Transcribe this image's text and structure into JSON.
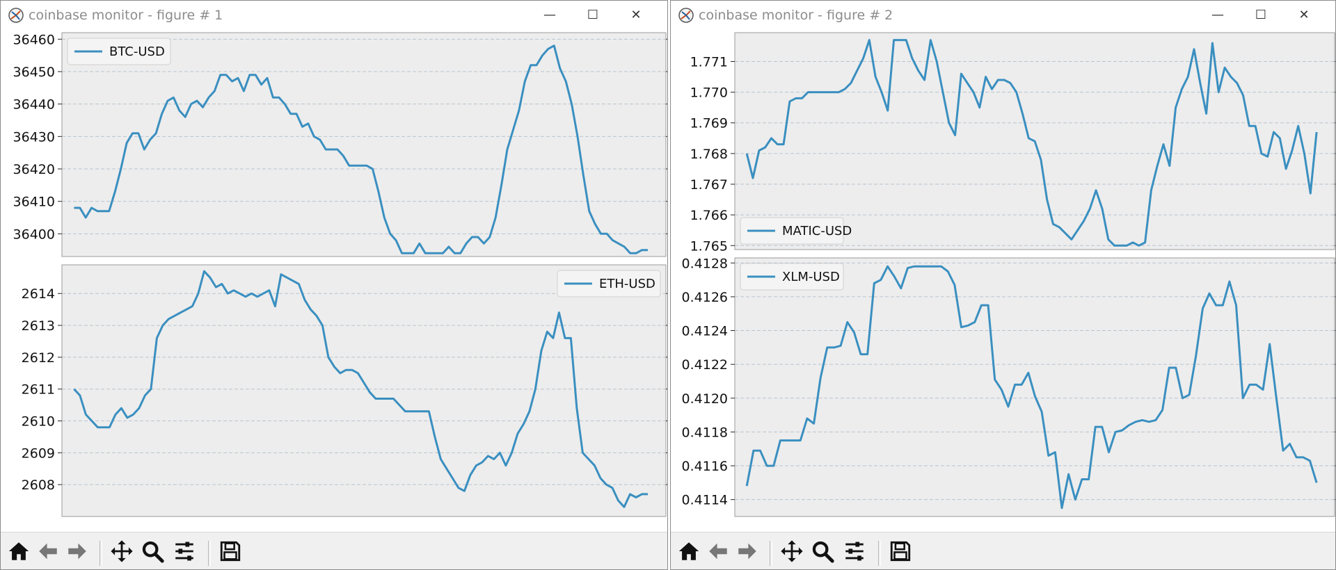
{
  "windows": [
    {
      "title": "coinbase monitor - figure # 1",
      "toolbar": [
        "home-icon",
        "back-icon",
        "forward-icon",
        "pan-icon",
        "zoom-icon",
        "configure-subplots-icon",
        "save-icon"
      ]
    },
    {
      "title": "coinbase monitor - figure # 2",
      "toolbar": [
        "home-icon",
        "back-icon",
        "forward-icon",
        "pan-icon",
        "zoom-icon",
        "configure-subplots-icon",
        "save-icon"
      ]
    }
  ],
  "colors": {
    "line": "#3a8fc0",
    "plot_bg": "#ededed",
    "grid": "#b8c4d0"
  },
  "chart_data": [
    {
      "type": "line",
      "series": [
        {
          "name": "BTC-USD",
          "values": [
            36408,
            36408,
            36405,
            36408,
            36407,
            36407,
            36407,
            36413,
            36420,
            36428,
            36431,
            36431,
            36426,
            36429,
            36431,
            36437,
            36441,
            36442,
            36438,
            36436,
            36440,
            36441,
            36439,
            36442,
            36444,
            36449,
            36449,
            36447,
            36448,
            36444,
            36449,
            36449,
            36446,
            36448,
            36442,
            36442,
            36440,
            36437,
            36437,
            36433,
            36434,
            36430,
            36429,
            36426,
            36426,
            36426,
            36424,
            36421,
            36421,
            36421,
            36421,
            36420,
            36413,
            36405,
            36400,
            36398,
            36394,
            36394,
            36394,
            36397,
            36394,
            36394,
            36394,
            36394,
            36396,
            36394,
            36394,
            36397,
            36399,
            36399,
            36397,
            36399,
            36405,
            36415,
            36426,
            36432,
            36438,
            36447,
            36452,
            36452,
            36455,
            36457,
            36458,
            36451,
            36447,
            36440,
            36430,
            36418,
            36407,
            36403,
            36400,
            36400,
            36398,
            36397,
            36396,
            36394,
            36394,
            36395,
            36395
          ]
        }
      ],
      "ylim": [
        36393,
        36462
      ],
      "yticks": [
        36400,
        36410,
        36420,
        36430,
        36440,
        36450,
        36460
      ],
      "legend_loc": "upper left"
    },
    {
      "type": "line",
      "series": [
        {
          "name": "ETH-USD",
          "values": [
            2611.0,
            2610.8,
            2610.2,
            2610.0,
            2609.8,
            2609.8,
            2609.8,
            2610.2,
            2610.4,
            2610.1,
            2610.2,
            2610.4,
            2610.8,
            2611.0,
            2612.6,
            2613.0,
            2613.2,
            2613.3,
            2613.4,
            2613.5,
            2613.6,
            2614.0,
            2614.7,
            2614.5,
            2614.2,
            2614.3,
            2614.0,
            2614.1,
            2614.0,
            2613.9,
            2614.0,
            2613.9,
            2614.0,
            2614.1,
            2613.6,
            2614.6,
            2614.5,
            2614.4,
            2614.3,
            2613.8,
            2613.5,
            2613.3,
            2613.0,
            2612.0,
            2611.7,
            2611.5,
            2611.6,
            2611.6,
            2611.5,
            2611.2,
            2610.9,
            2610.7,
            2610.7,
            2610.7,
            2610.7,
            2610.5,
            2610.3,
            2610.3,
            2610.3,
            2610.3,
            2610.3,
            2609.5,
            2608.8,
            2608.5,
            2608.2,
            2607.9,
            2607.8,
            2608.3,
            2608.6,
            2608.7,
            2608.9,
            2608.8,
            2609.0,
            2608.6,
            2609.0,
            2609.6,
            2609.9,
            2610.3,
            2611.0,
            2612.2,
            2612.8,
            2612.6,
            2613.4,
            2612.6,
            2612.6,
            2610.4,
            2609.0,
            2608.8,
            2608.6,
            2608.2,
            2608.0,
            2607.9,
            2607.5,
            2607.3,
            2607.7,
            2607.6,
            2607.7,
            2607.7
          ]
        }
      ],
      "ylim": [
        2607.0,
        2614.9
      ],
      "yticks": [
        2608,
        2609,
        2610,
        2611,
        2612,
        2613,
        2614
      ],
      "legend_loc": "upper right"
    },
    {
      "type": "line",
      "series": [
        {
          "name": "MATIC-USD",
          "values": [
            1.768,
            1.7672,
            1.7681,
            1.7682,
            1.7685,
            1.7683,
            1.7683,
            1.7697,
            1.7698,
            1.7698,
            1.77,
            1.77,
            1.77,
            1.77,
            1.77,
            1.77,
            1.7701,
            1.7703,
            1.7707,
            1.7711,
            1.7717,
            1.7705,
            1.77,
            1.7694,
            1.7717,
            1.7717,
            1.7717,
            1.7711,
            1.7707,
            1.7704,
            1.7717,
            1.771,
            1.77,
            1.769,
            1.7686,
            1.7706,
            1.7703,
            1.77,
            1.7695,
            1.7705,
            1.7701,
            1.7704,
            1.7704,
            1.7703,
            1.77,
            1.7693,
            1.7685,
            1.7684,
            1.7678,
            1.7665,
            1.7657,
            1.7656,
            1.7654,
            1.7652,
            1.7655,
            1.7658,
            1.7662,
            1.7668,
            1.7662,
            1.7652,
            1.765,
            1.765,
            1.765,
            1.7651,
            1.765,
            1.7651,
            1.7668,
            1.7676,
            1.7683,
            1.7676,
            1.7695,
            1.7701,
            1.7705,
            1.7714,
            1.7703,
            1.7693,
            1.7716,
            1.77,
            1.7708,
            1.7705,
            1.7703,
            1.7699,
            1.7689,
            1.7689,
            1.768,
            1.7679,
            1.7687,
            1.7685,
            1.7675,
            1.7681,
            1.7689,
            1.768,
            1.7667,
            1.7687
          ]
        }
      ],
      "ylim": [
        1.76487,
        1.77194
      ],
      "yticks": [
        1.765,
        1.766,
        1.767,
        1.768,
        1.769,
        1.77,
        1.771
      ],
      "legend_loc": "lower left"
    },
    {
      "type": "line",
      "series": [
        {
          "name": "XLM-USD",
          "values": [
            0.41148,
            0.41169,
            0.41169,
            0.4116,
            0.4116,
            0.41175,
            0.41175,
            0.41175,
            0.41175,
            0.41188,
            0.41185,
            0.41212,
            0.4123,
            0.4123,
            0.41231,
            0.41245,
            0.41239,
            0.41226,
            0.41226,
            0.41268,
            0.4127,
            0.41278,
            0.41272,
            0.41265,
            0.41277,
            0.41278,
            0.41278,
            0.41278,
            0.41278,
            0.41278,
            0.41275,
            0.41267,
            0.41242,
            0.41243,
            0.41245,
            0.41255,
            0.41255,
            0.41211,
            0.41205,
            0.41195,
            0.41208,
            0.41208,
            0.41215,
            0.41201,
            0.41192,
            0.41166,
            0.41168,
            0.41135,
            0.41155,
            0.4114,
            0.41152,
            0.41152,
            0.41183,
            0.41183,
            0.41168,
            0.4118,
            0.41181,
            0.41184,
            0.41186,
            0.41187,
            0.41186,
            0.41187,
            0.41193,
            0.41218,
            0.41218,
            0.412,
            0.41202,
            0.41225,
            0.41253,
            0.41262,
            0.41255,
            0.41255,
            0.41269,
            0.41255,
            0.412,
            0.41208,
            0.41208,
            0.41205,
            0.41232,
            0.412,
            0.41169,
            0.41173,
            0.41165,
            0.41165,
            0.41163,
            0.4115
          ]
        }
      ],
      "ylim": [
        0.4113,
        0.41283
      ],
      "yticks": [
        0.4114,
        0.4116,
        0.4118,
        0.412,
        0.4122,
        0.4124,
        0.4126,
        0.4128
      ],
      "legend_loc": "upper left"
    }
  ]
}
